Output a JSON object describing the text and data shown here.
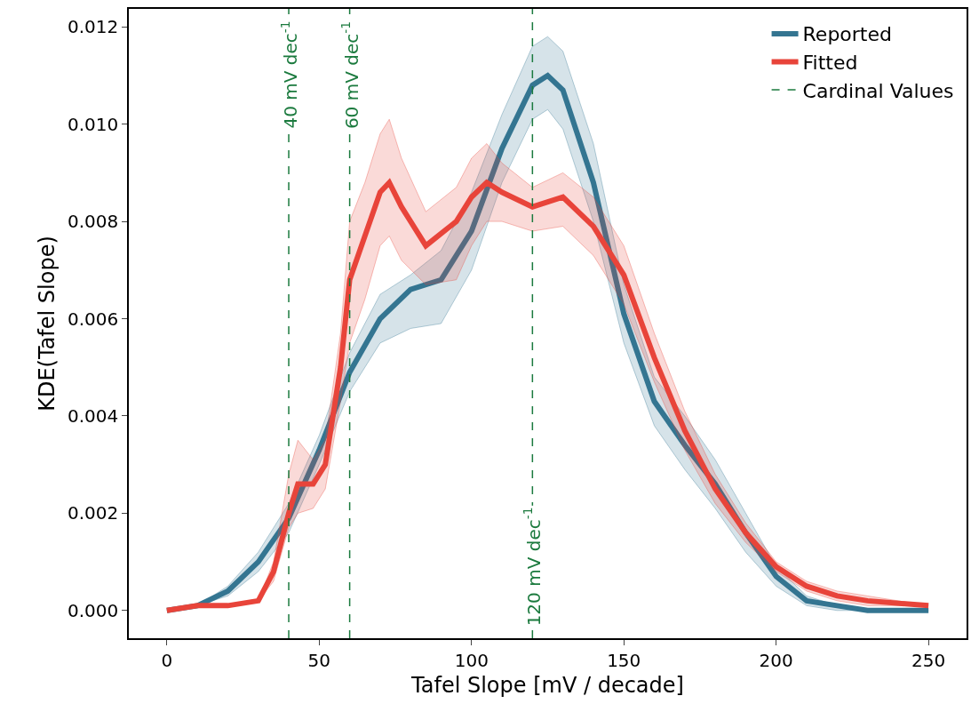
{
  "chart_data": {
    "type": "line",
    "xlabel": "Tafel Slope [mV / decade]",
    "ylabel": "KDE(Tafel Slope)",
    "xlim": [
      -12.5,
      262.5
    ],
    "xticks": [
      0,
      50,
      100,
      150,
      200,
      250
    ],
    "ylim": [
      -0.00057,
      0.01237
    ],
    "yticks": [
      {
        "value": 0,
        "label": "0.000"
      },
      {
        "value": 0.002,
        "label": "0.002"
      },
      {
        "value": 0.004,
        "label": "0.004"
      },
      {
        "value": 0.006,
        "label": "0.006"
      },
      {
        "value": 0.008,
        "label": "0.008"
      },
      {
        "value": 0.01,
        "label": "0.010"
      },
      {
        "value": 0.012,
        "label": "0.012"
      }
    ],
    "legend": "top right",
    "marker": "none",
    "line_style": "solid",
    "series": [
      {
        "name": "Reported",
        "color": "#347591",
        "x": [
          0,
          10,
          20,
          30,
          40,
          50,
          60,
          70,
          80,
          90,
          100,
          110,
          120,
          125,
          130,
          140,
          150,
          160,
          170,
          180,
          190,
          200,
          210,
          220,
          230,
          250
        ],
        "values": [
          0,
          0.0001,
          0.0004,
          0.001,
          0.0019,
          0.0033,
          0.0049,
          0.006,
          0.0066,
          0.0068,
          0.0078,
          0.0095,
          0.0108,
          0.011,
          0.0107,
          0.0088,
          0.0061,
          0.0043,
          0.0034,
          0.0026,
          0.0016,
          0.0007,
          0.0002,
          0.0001,
          0,
          0
        ],
        "lower": [
          0,
          0.0001,
          0.0003,
          0.0008,
          0.0016,
          0.003,
          0.0045,
          0.0055,
          0.0058,
          0.0059,
          0.007,
          0.0088,
          0.0101,
          0.0103,
          0.0099,
          0.008,
          0.0055,
          0.0038,
          0.0029,
          0.0021,
          0.0012,
          0.0005,
          0.0001,
          0,
          0,
          0
        ],
        "upper": [
          0,
          0.0001,
          0.0005,
          0.0012,
          0.0022,
          0.0036,
          0.0053,
          0.0065,
          0.0069,
          0.0074,
          0.0086,
          0.0102,
          0.0116,
          0.0118,
          0.0115,
          0.0096,
          0.0067,
          0.0048,
          0.004,
          0.0031,
          0.002,
          0.0009,
          0.0003,
          0.0001,
          0,
          0
        ]
      },
      {
        "name": "Fitted",
        "color": "#e8443a",
        "x": [
          0,
          10,
          20,
          30,
          35,
          40,
          43,
          48,
          52,
          57,
          60,
          65,
          70,
          73,
          77,
          85,
          95,
          100,
          105,
          110,
          120,
          130,
          140,
          150,
          160,
          170,
          180,
          190,
          200,
          210,
          220,
          230,
          250
        ],
        "values": [
          0,
          0.0001,
          0.0001,
          0.0002,
          0.0008,
          0.002,
          0.0026,
          0.0026,
          0.003,
          0.005,
          0.0068,
          0.0077,
          0.0086,
          0.0088,
          0.0083,
          0.0075,
          0.008,
          0.0085,
          0.0088,
          0.0086,
          0.0083,
          0.0085,
          0.0079,
          0.0069,
          0.0052,
          0.0037,
          0.0025,
          0.0016,
          0.0009,
          0.0005,
          0.0003,
          0.0002,
          0.0001
        ],
        "lower": [
          0,
          0.0001,
          0.0001,
          0.0002,
          0.0006,
          0.0017,
          0.002,
          0.0021,
          0.0025,
          0.0043,
          0.0055,
          0.0064,
          0.0075,
          0.0077,
          0.0072,
          0.0067,
          0.0068,
          0.0075,
          0.008,
          0.008,
          0.0078,
          0.0079,
          0.0073,
          0.0063,
          0.0047,
          0.0033,
          0.0022,
          0.0014,
          0.0008,
          0.0004,
          0.0002,
          0.0001,
          0.0001
        ],
        "upper": [
          0,
          0.0001,
          0.0001,
          0.0002,
          0.001,
          0.0028,
          0.0035,
          0.0031,
          0.0035,
          0.0057,
          0.008,
          0.0088,
          0.0098,
          0.0101,
          0.0093,
          0.0082,
          0.0087,
          0.0093,
          0.0096,
          0.0092,
          0.0087,
          0.009,
          0.0085,
          0.0075,
          0.0057,
          0.0041,
          0.0028,
          0.0018,
          0.001,
          0.0006,
          0.0004,
          0.0003,
          0.0001
        ]
      }
    ],
    "ref_lines": [
      {
        "axis": "x",
        "value": 40,
        "label": "40 mV dec$^{-1}$",
        "color": "#1b7a3e",
        "line_style": "dashed"
      },
      {
        "axis": "x",
        "value": 60,
        "label": "60 mV dec$^{-1}$",
        "color": "#1b7a3e",
        "line_style": "dashed"
      },
      {
        "axis": "x",
        "value": 120,
        "label": "120 mV dec$^{-1}$",
        "color": "#1b7a3e",
        "line_style": "dashed"
      }
    ],
    "annotations": [
      "Cardinal Values"
    ]
  }
}
